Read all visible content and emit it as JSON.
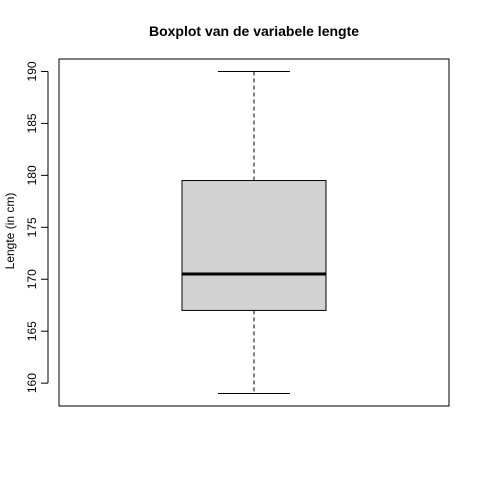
{
  "chart_data": {
    "type": "boxplot",
    "title": "Boxplot van de variabele lengte",
    "xlabel": "",
    "ylabel": "Lengte (in cm)",
    "ylim": [
      157.8,
      191.2
    ],
    "yticks": [
      160,
      165,
      170,
      175,
      180,
      185,
      190
    ],
    "grid": false,
    "box": {
      "min": 159,
      "q1": 167,
      "median": 170.5,
      "q3": 179.5,
      "max": 190
    },
    "colors": {
      "box_fill": "#d3d3d3",
      "stroke": "#000000"
    }
  }
}
